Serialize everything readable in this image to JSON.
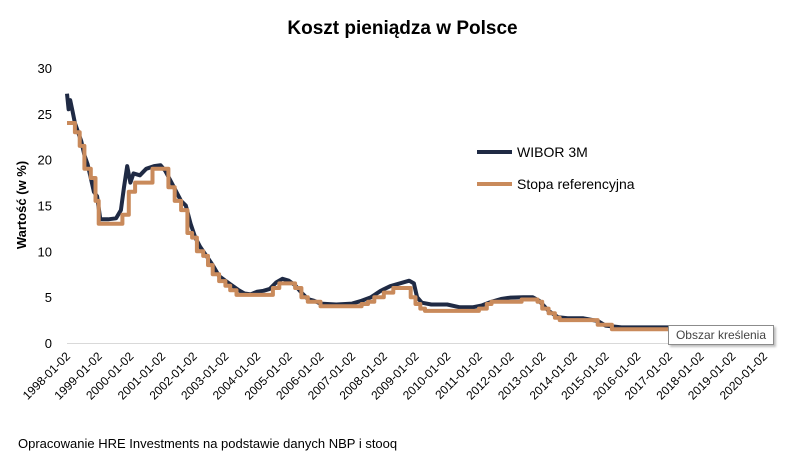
{
  "chart_data": {
    "type": "line",
    "title": "Koszt pieniądza w Polsce",
    "ylabel": "Wartość (w %)",
    "xlabel": "",
    "ylim": [
      0,
      30
    ],
    "y_ticks": [
      0,
      5,
      10,
      15,
      20,
      25,
      30
    ],
    "x_ticks": [
      "1998-01-02",
      "1999-01-02",
      "2000-01-02",
      "2001-01-02",
      "2002-01-02",
      "2003-01-02",
      "2004-01-02",
      "2005-01-02",
      "2006-01-02",
      "2007-01-02",
      "2008-01-02",
      "2009-01-02",
      "2010-01-02",
      "2011-01-02",
      "2012-01-02",
      "2013-01-02",
      "2014-01-02",
      "2015-01-02",
      "2016-01-02",
      "2017-01-02",
      "2018-01-02",
      "2019-01-02",
      "2020-01-02"
    ],
    "legend_position": "right-inside",
    "grid": false,
    "series": [
      {
        "name": "WIBOR 3M",
        "color": "#1f2a44",
        "points": [
          [
            1998.0,
            27.2
          ],
          [
            1998.05,
            25.5
          ],
          [
            1998.1,
            26.5
          ],
          [
            1998.18,
            25.2
          ],
          [
            1998.25,
            24.0
          ],
          [
            1998.35,
            23.0
          ],
          [
            1998.45,
            22.0
          ],
          [
            1998.55,
            20.5
          ],
          [
            1998.65,
            19.5
          ],
          [
            1998.75,
            18.0
          ],
          [
            1998.85,
            16.5
          ],
          [
            1998.95,
            16.0
          ],
          [
            1999.05,
            13.5
          ],
          [
            1999.3,
            13.5
          ],
          [
            1999.55,
            13.6
          ],
          [
            1999.7,
            14.5
          ],
          [
            1999.8,
            17.0
          ],
          [
            1999.9,
            19.3
          ],
          [
            2000.0,
            17.5
          ],
          [
            2000.1,
            18.5
          ],
          [
            2000.3,
            18.3
          ],
          [
            2000.5,
            19.0
          ],
          [
            2000.75,
            19.3
          ],
          [
            2000.95,
            19.4
          ],
          [
            2001.1,
            18.8
          ],
          [
            2001.3,
            17.5
          ],
          [
            2001.45,
            16.5
          ],
          [
            2001.6,
            15.5
          ],
          [
            2001.75,
            15.0
          ],
          [
            2001.9,
            13.0
          ],
          [
            2002.05,
            11.5
          ],
          [
            2002.2,
            10.5
          ],
          [
            2002.4,
            9.5
          ],
          [
            2002.6,
            8.5
          ],
          [
            2002.8,
            7.3
          ],
          [
            2003.0,
            6.8
          ],
          [
            2003.2,
            6.3
          ],
          [
            2003.4,
            5.8
          ],
          [
            2003.6,
            5.4
          ],
          [
            2003.8,
            5.3
          ],
          [
            2004.0,
            5.6
          ],
          [
            2004.2,
            5.7
          ],
          [
            2004.4,
            5.9
          ],
          [
            2004.6,
            6.6
          ],
          [
            2004.8,
            7.0
          ],
          [
            2005.0,
            6.8
          ],
          [
            2005.2,
            6.3
          ],
          [
            2005.4,
            5.5
          ],
          [
            2005.6,
            4.8
          ],
          [
            2005.8,
            4.6
          ],
          [
            2006.0,
            4.3
          ],
          [
            2006.5,
            4.2
          ],
          [
            2007.0,
            4.3
          ],
          [
            2007.3,
            4.6
          ],
          [
            2007.6,
            5.0
          ],
          [
            2007.9,
            5.7
          ],
          [
            2008.2,
            6.2
          ],
          [
            2008.5,
            6.5
          ],
          [
            2008.8,
            6.8
          ],
          [
            2008.95,
            6.5
          ],
          [
            2009.05,
            5.0
          ],
          [
            2009.2,
            4.4
          ],
          [
            2009.5,
            4.2
          ],
          [
            2009.8,
            4.2
          ],
          [
            2010.0,
            4.2
          ],
          [
            2010.4,
            3.9
          ],
          [
            2010.8,
            3.9
          ],
          [
            2011.1,
            4.1
          ],
          [
            2011.4,
            4.5
          ],
          [
            2011.7,
            4.8
          ],
          [
            2012.0,
            4.95
          ],
          [
            2012.4,
            5.0
          ],
          [
            2012.7,
            5.0
          ],
          [
            2012.9,
            4.6
          ],
          [
            2013.2,
            3.5
          ],
          [
            2013.5,
            2.8
          ],
          [
            2013.8,
            2.7
          ],
          [
            2014.3,
            2.7
          ],
          [
            2014.75,
            2.4
          ],
          [
            2015.0,
            1.9
          ],
          [
            2015.5,
            1.7
          ],
          [
            2016.0,
            1.7
          ],
          [
            2016.5,
            1.7
          ],
          [
            2017.0,
            1.7
          ]
        ]
      },
      {
        "name": "Stopa referencyjna",
        "color": "#c98a5b",
        "points": [
          [
            1998.0,
            24.0
          ],
          [
            1998.25,
            24.0
          ],
          [
            1998.25,
            23.0
          ],
          [
            1998.4,
            23.0
          ],
          [
            1998.4,
            21.5
          ],
          [
            1998.55,
            21.5
          ],
          [
            1998.55,
            19.0
          ],
          [
            1998.75,
            19.0
          ],
          [
            1998.75,
            18.0
          ],
          [
            1998.9,
            18.0
          ],
          [
            1998.9,
            15.5
          ],
          [
            1999.0,
            15.5
          ],
          [
            1999.0,
            13.0
          ],
          [
            1999.75,
            13.0
          ],
          [
            1999.75,
            14.0
          ],
          [
            1999.95,
            14.0
          ],
          [
            1999.95,
            16.5
          ],
          [
            2000.15,
            16.5
          ],
          [
            2000.15,
            17.5
          ],
          [
            2000.7,
            17.5
          ],
          [
            2000.7,
            19.0
          ],
          [
            2001.2,
            19.0
          ],
          [
            2001.2,
            17.0
          ],
          [
            2001.4,
            17.0
          ],
          [
            2001.4,
            15.5
          ],
          [
            2001.6,
            15.5
          ],
          [
            2001.6,
            14.5
          ],
          [
            2001.8,
            14.5
          ],
          [
            2001.8,
            12.0
          ],
          [
            2001.95,
            12.0
          ],
          [
            2001.95,
            11.5
          ],
          [
            2002.1,
            11.5
          ],
          [
            2002.1,
            10.0
          ],
          [
            2002.3,
            10.0
          ],
          [
            2002.3,
            9.5
          ],
          [
            2002.45,
            9.5
          ],
          [
            2002.45,
            8.5
          ],
          [
            2002.6,
            8.5
          ],
          [
            2002.6,
            7.5
          ],
          [
            2002.8,
            7.5
          ],
          [
            2002.8,
            6.75
          ],
          [
            2003.0,
            6.75
          ],
          [
            2003.0,
            6.25
          ],
          [
            2003.15,
            6.25
          ],
          [
            2003.15,
            5.75
          ],
          [
            2003.35,
            5.75
          ],
          [
            2003.35,
            5.25
          ],
          [
            2004.5,
            5.25
          ],
          [
            2004.5,
            6.0
          ],
          [
            2004.7,
            6.0
          ],
          [
            2004.7,
            6.5
          ],
          [
            2005.2,
            6.5
          ],
          [
            2005.2,
            6.0
          ],
          [
            2005.4,
            6.0
          ],
          [
            2005.4,
            5.0
          ],
          [
            2005.6,
            5.0
          ],
          [
            2005.6,
            4.5
          ],
          [
            2006.0,
            4.5
          ],
          [
            2006.0,
            4.0
          ],
          [
            2007.3,
            4.0
          ],
          [
            2007.3,
            4.25
          ],
          [
            2007.5,
            4.25
          ],
          [
            2007.5,
            4.5
          ],
          [
            2007.7,
            4.5
          ],
          [
            2007.7,
            5.0
          ],
          [
            2008.0,
            5.0
          ],
          [
            2008.0,
            5.5
          ],
          [
            2008.3,
            5.5
          ],
          [
            2008.3,
            6.0
          ],
          [
            2008.85,
            6.0
          ],
          [
            2008.85,
            5.0
          ],
          [
            2009.0,
            5.0
          ],
          [
            2009.0,
            4.25
          ],
          [
            2009.15,
            4.25
          ],
          [
            2009.15,
            3.75
          ],
          [
            2009.3,
            3.75
          ],
          [
            2009.3,
            3.5
          ],
          [
            2011.0,
            3.5
          ],
          [
            2011.0,
            3.75
          ],
          [
            2011.25,
            3.75
          ],
          [
            2011.25,
            4.25
          ],
          [
            2011.4,
            4.25
          ],
          [
            2011.4,
            4.5
          ],
          [
            2012.35,
            4.5
          ],
          [
            2012.35,
            4.75
          ],
          [
            2012.85,
            4.75
          ],
          [
            2012.85,
            4.5
          ],
          [
            2013.0,
            4.5
          ],
          [
            2013.0,
            3.75
          ],
          [
            2013.2,
            3.75
          ],
          [
            2013.2,
            3.25
          ],
          [
            2013.4,
            3.25
          ],
          [
            2013.4,
            2.75
          ],
          [
            2013.55,
            2.75
          ],
          [
            2013.55,
            2.5
          ],
          [
            2014.75,
            2.5
          ],
          [
            2014.75,
            2.0
          ],
          [
            2015.2,
            2.0
          ],
          [
            2015.2,
            1.5
          ],
          [
            2017.0,
            1.5
          ]
        ]
      }
    ]
  },
  "tooltip": "Obszar kreślenia",
  "source": "Opracowanie HRE Investments na podstawie danych NBP i stooq"
}
